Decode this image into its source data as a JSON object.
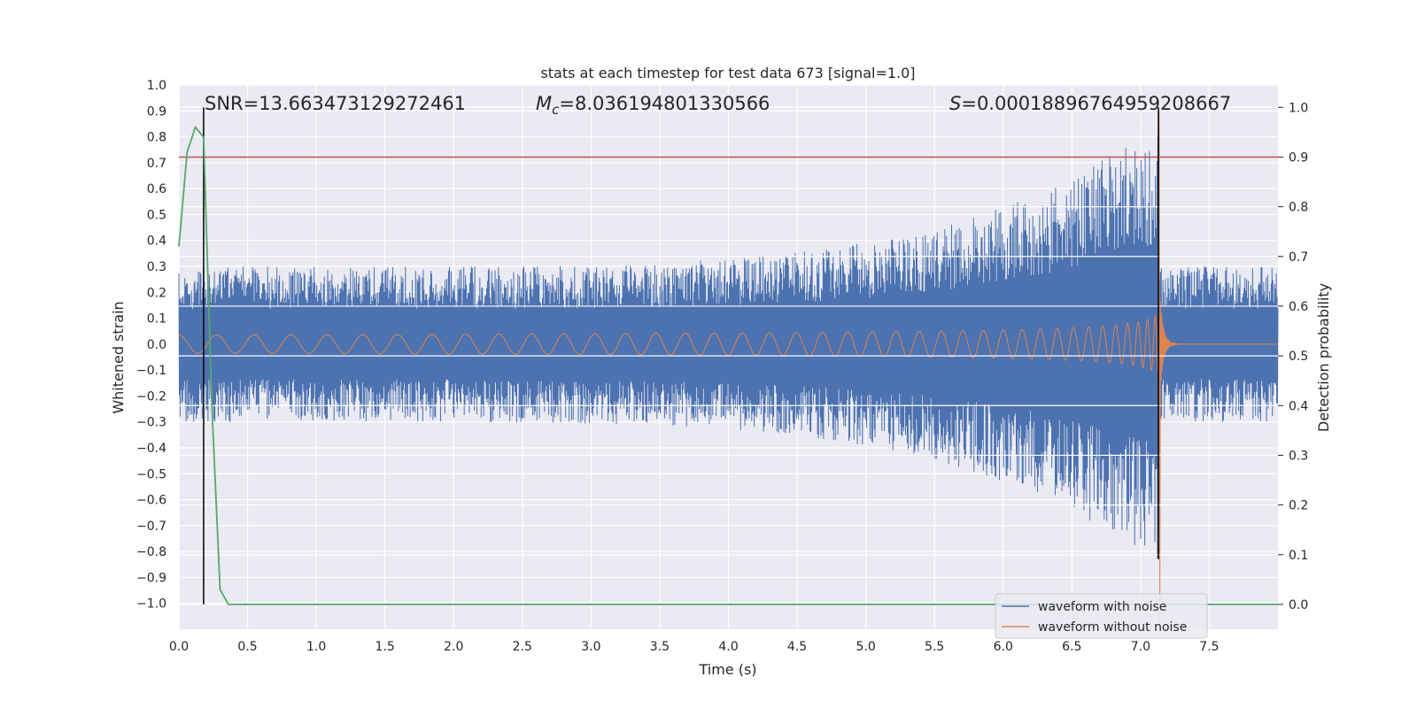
{
  "chart_data": {
    "type": "line",
    "title": "stats at each timestep for test data 673 [signal=1.0]",
    "xlabel": "Time (s)",
    "ylabel": "Whitened strain",
    "y2label": "Detection probability",
    "xlim": [
      0.0,
      8.0
    ],
    "ylim": [
      -1.1,
      1.0
    ],
    "y2lim": [
      -0.05,
      1.045
    ],
    "xticks": [
      "0.0",
      "0.5",
      "1.0",
      "1.5",
      "2.0",
      "2.5",
      "3.0",
      "3.5",
      "4.0",
      "4.5",
      "5.0",
      "5.5",
      "6.0",
      "6.5",
      "7.0",
      "7.5"
    ],
    "yticks": [
      "1.0",
      "0.9",
      "0.8",
      "0.7",
      "0.6",
      "0.5",
      "0.4",
      "0.3",
      "0.2",
      "0.1",
      "0.0",
      "−0.1",
      "−0.2",
      "−0.3",
      "−0.4",
      "−0.5",
      "−0.6",
      "−0.7",
      "−0.8",
      "−0.9",
      "−1.0"
    ],
    "y2ticks": [
      "1.0",
      "0.9",
      "0.8",
      "0.7",
      "0.6",
      "0.5",
      "0.4",
      "0.3",
      "0.2",
      "0.1",
      "0.0"
    ],
    "annotations": {
      "snr": "SNR=13.663473129272461",
      "mc_symbol": "M",
      "mc_sub": "c",
      "mc_value": "=8.036194801330566",
      "s_symbol": "S",
      "s_value": "=0.00018896764959208667"
    },
    "threshold": {
      "value": 0.9,
      "color": "#c44e52"
    },
    "marker_time": 0.18,
    "merger_time": 7.13,
    "series": [
      {
        "name": "waveform with noise",
        "color": "#4c72b0",
        "axis": "left",
        "description_envelope": {
          "noise_amplitude": 0.3,
          "merger_peak": 0.9,
          "merger_trough": -0.83
        }
      },
      {
        "name": "waveform without noise",
        "color": "#dd8452",
        "axis": "left",
        "description_envelope": {
          "start_amplitude": 0.035,
          "merger_peak": 0.9,
          "merger_trough": -1.07
        }
      },
      {
        "name": "detection probability",
        "color": "#55a868",
        "axis": "right",
        "x": [
          0.0,
          0.06,
          0.12,
          0.18,
          0.24,
          0.3,
          0.36,
          0.42,
          8.0
        ],
        "values": [
          0.72,
          0.91,
          0.96,
          0.94,
          0.4,
          0.03,
          0.0,
          0.0,
          0.0
        ]
      }
    ],
    "legend": {
      "position": "lower-right",
      "entries": [
        "waveform with noise",
        "waveform without noise"
      ]
    }
  }
}
